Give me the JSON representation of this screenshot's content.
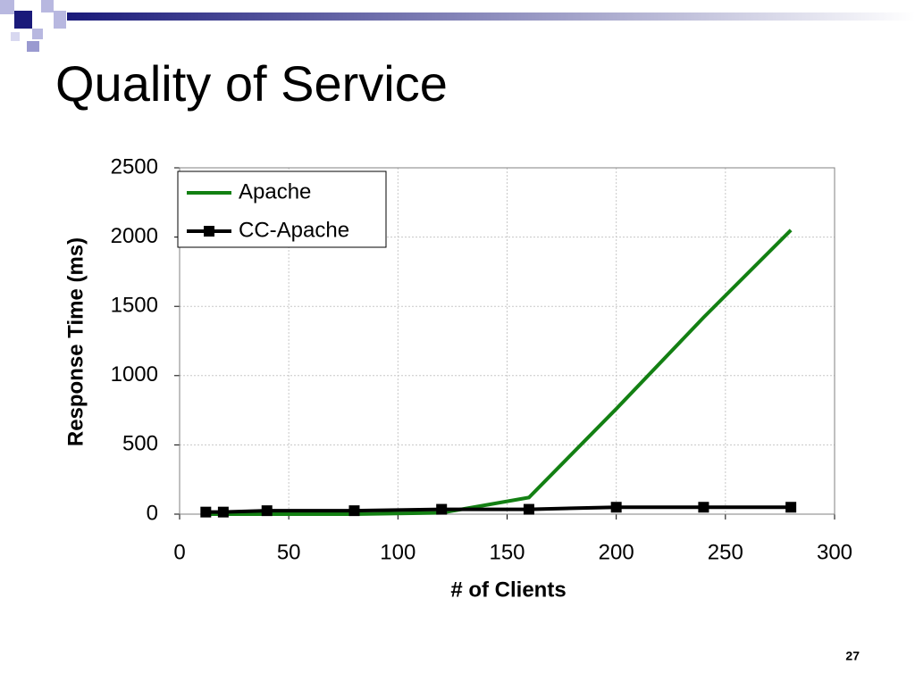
{
  "slide": {
    "title": "Quality of Service",
    "page_number": "27"
  },
  "chart_data": {
    "type": "line",
    "x": [
      12,
      20,
      40,
      80,
      120,
      160,
      200,
      240,
      280
    ],
    "series": [
      {
        "name": "Apache",
        "color": "#138013",
        "marker": false,
        "values": [
          0,
          0,
          0,
          0,
          10,
          120,
          760,
          1420,
          2050
        ]
      },
      {
        "name": "CC-Apache",
        "color": "#000000",
        "marker": true,
        "values": [
          15,
          15,
          25,
          25,
          35,
          35,
          50,
          50,
          50
        ]
      }
    ],
    "xlim": [
      0,
      300
    ],
    "xticks": [
      0,
      50,
      100,
      150,
      200,
      250,
      300
    ],
    "ylim": [
      0,
      2500
    ],
    "yticks": [
      0,
      500,
      1000,
      1500,
      2000,
      2500
    ],
    "x_label": "# of Clients",
    "y_label": "Response Time (ms)",
    "grid": true,
    "legend": "upper-left"
  }
}
